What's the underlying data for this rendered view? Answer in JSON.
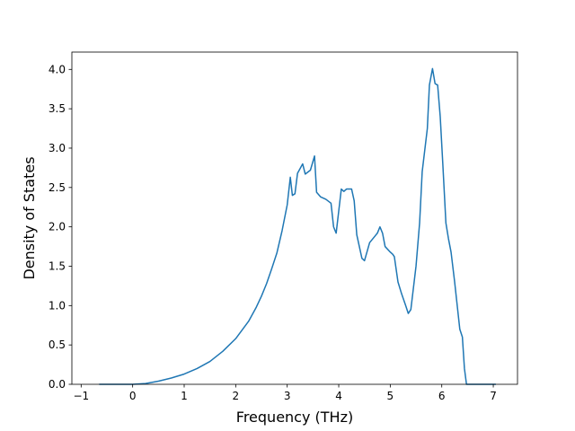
{
  "chart_data": {
    "type": "line",
    "title": "",
    "xlabel": "Frequency (THz)",
    "ylabel": "Density of States",
    "xlim": [
      -1.18,
      7.47
    ],
    "ylim": [
      0.0,
      4.22
    ],
    "xticks": [
      -1,
      0,
      1,
      2,
      3,
      4,
      5,
      6,
      7
    ],
    "xtick_labels": [
      "−1",
      "0",
      "1",
      "2",
      "3",
      "4",
      "5",
      "6",
      "7"
    ],
    "yticks": [
      0.0,
      0.5,
      1.0,
      1.5,
      2.0,
      2.5,
      3.0,
      3.5,
      4.0
    ],
    "ytick_labels": [
      "0.0",
      "0.5",
      "1.0",
      "1.5",
      "2.0",
      "2.5",
      "3.0",
      "3.5",
      "4.0"
    ],
    "grid": false,
    "legend": "none",
    "color": "#1f77b4",
    "series": [
      {
        "x": [
          -0.65,
          0.0,
          0.25,
          0.5,
          0.75,
          1.0,
          1.25,
          1.5,
          1.75,
          2.0,
          2.25,
          2.4,
          2.5,
          2.6,
          2.7,
          2.8,
          2.9,
          3.0,
          3.06,
          3.1,
          3.15,
          3.2,
          3.3,
          3.35,
          3.45,
          3.53,
          3.57,
          3.65,
          3.75,
          3.85,
          3.9,
          3.95,
          4.05,
          4.1,
          4.15,
          4.25,
          4.3,
          4.35,
          4.45,
          4.5,
          4.6,
          4.7,
          4.75,
          4.8,
          4.85,
          4.9,
          5.0,
          5.05,
          5.08,
          5.15,
          5.22,
          5.3,
          5.35,
          5.4,
          5.5,
          5.57,
          5.62,
          5.72,
          5.76,
          5.82,
          5.87,
          5.92,
          5.97,
          6.02,
          6.08,
          6.13,
          6.18,
          6.25,
          6.3,
          6.35,
          6.4,
          6.44,
          6.48,
          6.52,
          6.6,
          7.05
        ],
        "y": [
          0.0,
          0.0,
          0.01,
          0.04,
          0.08,
          0.13,
          0.2,
          0.29,
          0.42,
          0.58,
          0.8,
          0.98,
          1.12,
          1.28,
          1.47,
          1.67,
          1.95,
          2.28,
          2.63,
          2.4,
          2.42,
          2.68,
          2.8,
          2.67,
          2.72,
          2.9,
          2.44,
          2.38,
          2.35,
          2.3,
          2.0,
          1.92,
          2.48,
          2.45,
          2.48,
          2.48,
          2.33,
          1.9,
          1.6,
          1.57,
          1.8,
          1.88,
          1.92,
          2.0,
          1.92,
          1.75,
          1.68,
          1.65,
          1.62,
          1.3,
          1.15,
          1.0,
          0.9,
          0.95,
          1.5,
          2.05,
          2.7,
          3.25,
          3.8,
          4.01,
          3.82,
          3.8,
          3.4,
          2.8,
          2.05,
          1.85,
          1.68,
          1.3,
          1.0,
          0.7,
          0.6,
          0.2,
          0.0,
          0.0,
          0.0,
          0.0
        ]
      }
    ]
  }
}
